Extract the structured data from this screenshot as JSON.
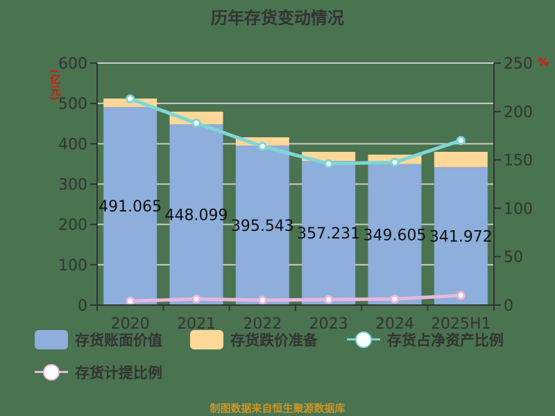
{
  "title": "历年存货变动情况",
  "source": "制图数据来自恒生聚源数据库",
  "colors": {
    "background": "#4a7350",
    "book_value": "#8eaedb",
    "provision": "#fdd899",
    "net_asset_ratio": "#7fd6d6",
    "provision_ratio": "#e8b7dc",
    "axis": "#333333",
    "grid": "#cccccc",
    "unit": "#ff0000",
    "source": "#c8962a"
  },
  "axes": {
    "left_unit": "(亿元)",
    "right_unit": "%",
    "left_ticks": [
      "0",
      "100",
      "200",
      "300",
      "400",
      "500",
      "600"
    ],
    "right_ticks": [
      "0",
      "50",
      "100",
      "150",
      "200",
      "250"
    ]
  },
  "legend": [
    {
      "label": "存货账面价值",
      "type": "bar",
      "key": "book_value"
    },
    {
      "label": "存货跌价准备",
      "type": "bar",
      "key": "provision"
    },
    {
      "label": "存货占净资产比例",
      "type": "line",
      "key": "net_asset_ratio"
    },
    {
      "label": "存货计提比例",
      "type": "line",
      "key": "provision_ratio"
    }
  ],
  "chart_data": {
    "type": "bar",
    "title": "历年存货变动情况",
    "categories": [
      "2020",
      "2021",
      "2022",
      "2023",
      "2024",
      "2025H1"
    ],
    "stacked": true,
    "xlabel": "",
    "ylabel": "(亿元)",
    "ylim": [
      0,
      600
    ],
    "y2label": "%",
    "y2lim": [
      0,
      250
    ],
    "grid": true,
    "legend_position": "bottom",
    "series": [
      {
        "name": "存货账面价值",
        "type": "bar",
        "axis": "left",
        "values": [
          491.065,
          448.099,
          395.543,
          357.231,
          349.605,
          341.972
        ],
        "labels": [
          "491.065",
          "448.099",
          "395.543",
          "357.231",
          "349.605",
          "341.972"
        ]
      },
      {
        "name": "存货跌价准备",
        "type": "bar",
        "axis": "left",
        "values": [
          21,
          31.5,
          20.5,
          22.7,
          23.4,
          38
        ]
      },
      {
        "name": "存货占净资产比例",
        "type": "line",
        "axis": "right",
        "values": [
          213,
          188,
          164,
          146,
          147.5,
          170
        ]
      },
      {
        "name": "存货计提比例",
        "type": "line",
        "axis": "right",
        "values": [
          4.1,
          6.3,
          5.0,
          5.7,
          6.3,
          10.0
        ]
      }
    ]
  }
}
